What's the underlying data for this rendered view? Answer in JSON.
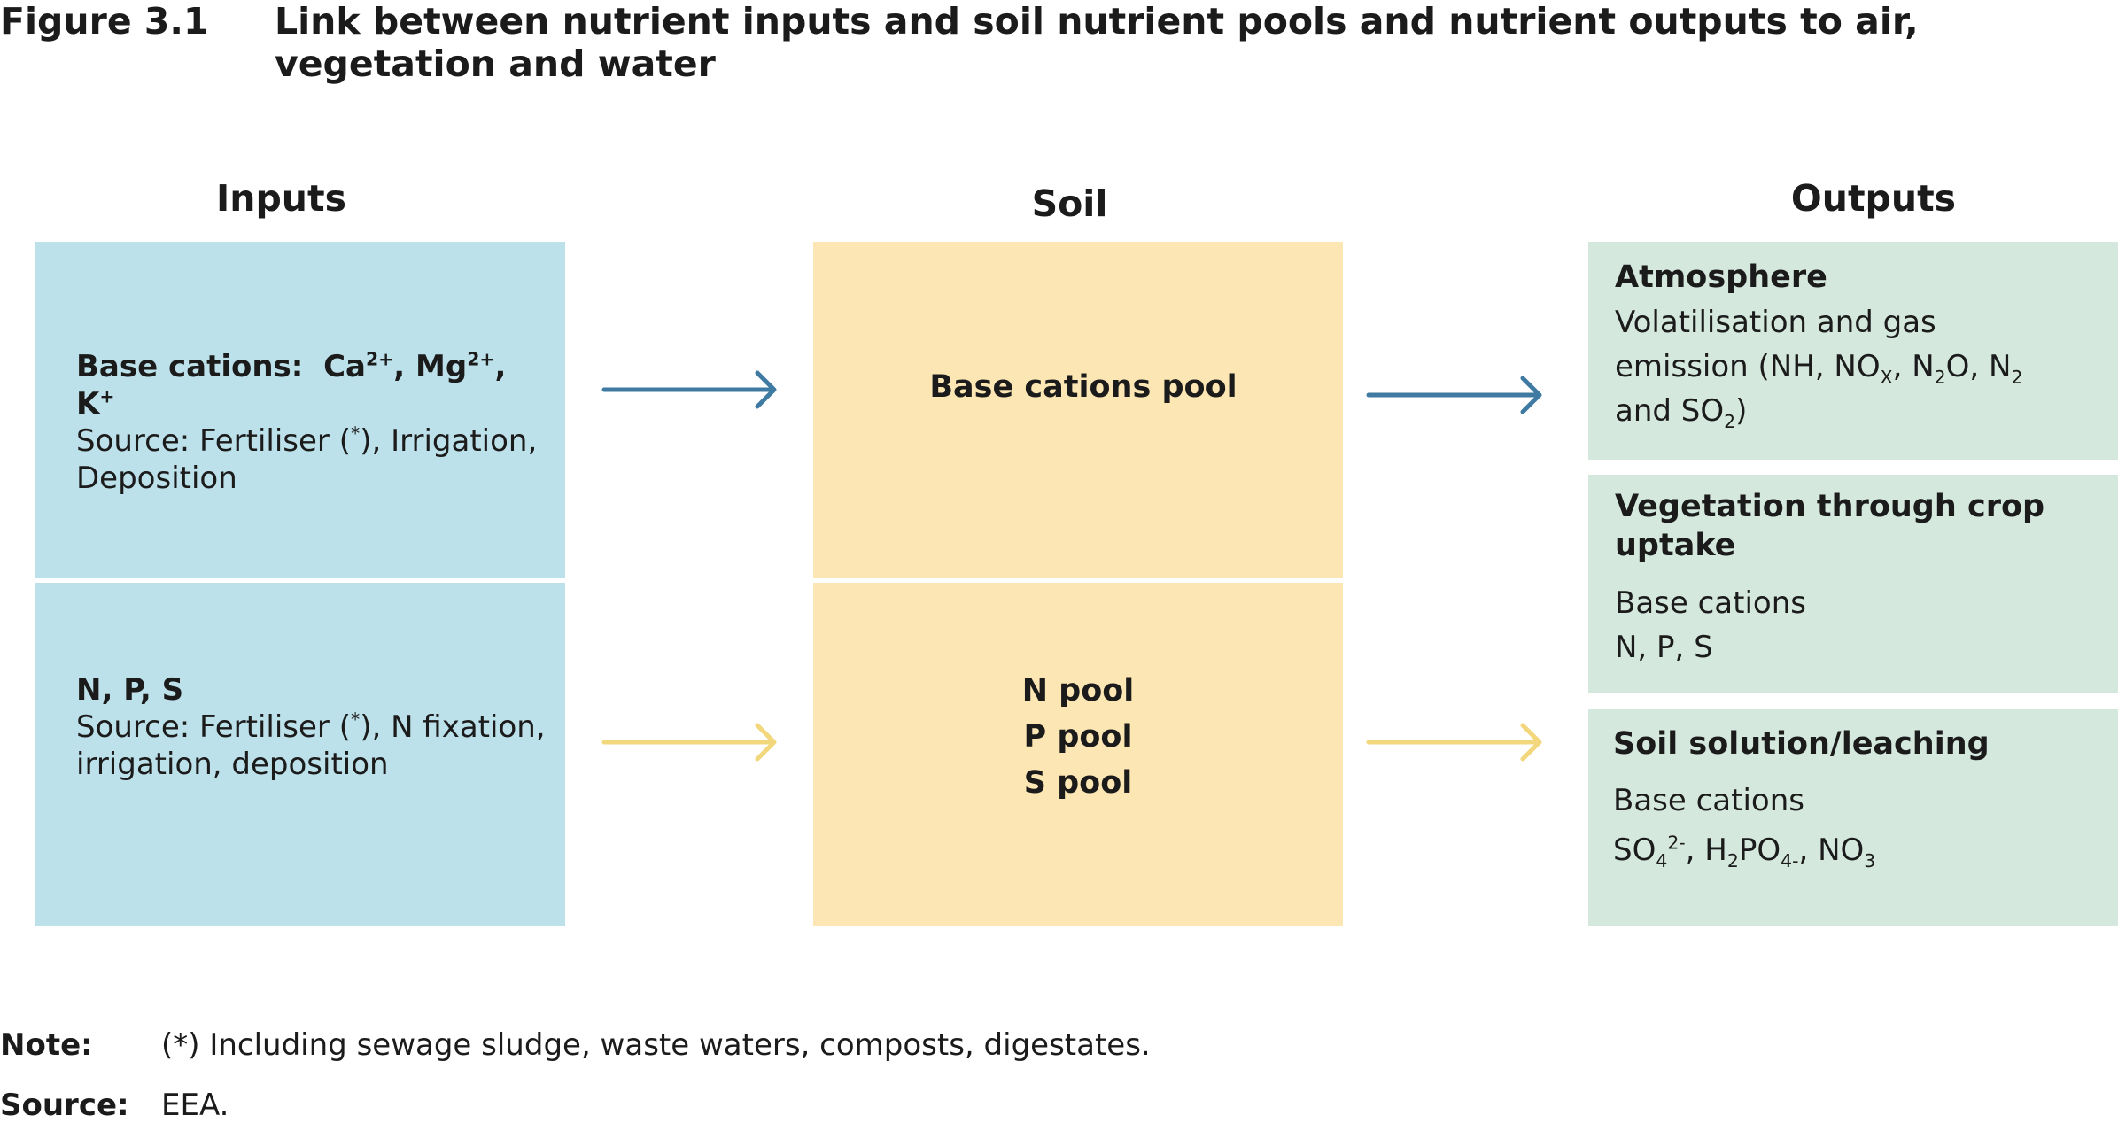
{
  "figure": {
    "number": "Figure 3.1",
    "title": "Link between nutrient inputs and soil nutrient pools and nutrient outputs to air, vegetation and water"
  },
  "columns": {
    "inputs": "Inputs",
    "soil": "Soil",
    "outputs": "Outputs"
  },
  "inputs": {
    "base_cations": {
      "heading": "Base cations:",
      "ca": "Ca",
      "ca_charge": "2+",
      "mg": "Mg",
      "mg_charge": "2+",
      "k": "K",
      "k_charge": "+",
      "source_line1": "Source: Fertiliser (",
      "star": "*",
      "source_line1_end": "), Irrigation,",
      "source_line2": "Deposition"
    },
    "nps": {
      "heading": "N, P, S",
      "source_line1": "Source: Fertiliser (",
      "star": "*",
      "source_line1_end": "), N fixation,",
      "source_line2": "irrigation, deposition"
    }
  },
  "soil": {
    "base_pool": "Base cations pool",
    "n_pool": "N pool",
    "p_pool": "P pool",
    "s_pool": "S pool"
  },
  "outputs": {
    "atmosphere": {
      "title": "Atmosphere",
      "line1": "Volatilisation and gas",
      "line2_a": "emission (NH, NO",
      "nox_sub": "X",
      "line2_b": ", N",
      "n2o_sub": "2",
      "line2_c": "O, N",
      "n2_sub": "2",
      "line3_a": "and SO",
      "so2_sub": "2",
      "line3_b": ")"
    },
    "vegetation": {
      "title": "Vegetation through crop uptake",
      "line1": "Base cations",
      "line2": "N, P, S"
    },
    "leaching": {
      "title": "Soil solution/leaching",
      "line1": "Base cations",
      "so4": "SO",
      "so4_sub": "4",
      "so4_sup": "2-",
      "h2po4_a": ", H",
      "h2po4_sub1": "2",
      "h2po4_b": "PO",
      "h2po4_sub2": "4-",
      "no3_a": ", NO",
      "no3_sub": "3"
    }
  },
  "footer": {
    "note_label": "Note:",
    "note_text": "(*) Including sewage sludge, waste waters, composts, digestates.",
    "source_label": "Source:",
    "source_text": "EEA."
  },
  "colors": {
    "inputs_box": "#bde1ea",
    "soil_box": "#fce6b4",
    "outputs_box": "#d4e8de",
    "arrow_blue": "#3f7aa3",
    "arrow_yellow": "#f3d77c"
  }
}
